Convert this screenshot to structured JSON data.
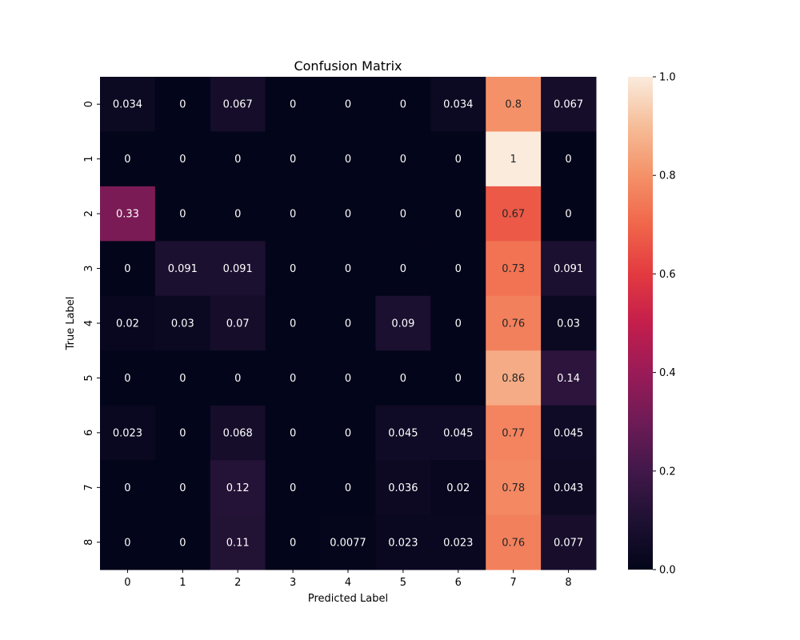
{
  "chart_data": {
    "type": "heatmap",
    "title": "Confusion Matrix",
    "xlabel": "Predicted Label",
    "ylabel": "True Label",
    "x_categories": [
      "0",
      "1",
      "2",
      "3",
      "4",
      "5",
      "6",
      "7",
      "8"
    ],
    "y_categories": [
      "0",
      "1",
      "2",
      "3",
      "4",
      "5",
      "6",
      "7",
      "8"
    ],
    "cell_labels": [
      [
        "0.034",
        "0",
        "0.067",
        "0",
        "0",
        "0",
        "0.034",
        "0.8",
        "0.067"
      ],
      [
        "0",
        "0",
        "0",
        "0",
        "0",
        "0",
        "0",
        "1",
        "0"
      ],
      [
        "0.33",
        "0",
        "0",
        "0",
        "0",
        "0",
        "0",
        "0.67",
        "0"
      ],
      [
        "0",
        "0.091",
        "0.091",
        "0",
        "0",
        "0",
        "0",
        "0.73",
        "0.091"
      ],
      [
        "0.02",
        "0.03",
        "0.07",
        "0",
        "0",
        "0.09",
        "0",
        "0.76",
        "0.03"
      ],
      [
        "0",
        "0",
        "0",
        "0",
        "0",
        "0",
        "0",
        "0.86",
        "0.14"
      ],
      [
        "0.023",
        "0",
        "0.068",
        "0",
        "0",
        "0.045",
        "0.045",
        "0.77",
        "0.045"
      ],
      [
        "0",
        "0",
        "0.12",
        "0",
        "0",
        "0.036",
        "0.02",
        "0.78",
        "0.043"
      ],
      [
        "0",
        "0",
        "0.11",
        "0",
        "0.0077",
        "0.023",
        "0.023",
        "0.76",
        "0.077"
      ]
    ],
    "colorbar": {
      "min": 0.0,
      "max": 1.0,
      "ticks": [
        "0.0",
        "0.2",
        "0.4",
        "0.6",
        "0.8",
        "1.0"
      ],
      "colormap": "rocket"
    },
    "grid": false,
    "legend": "colorbar-right"
  }
}
